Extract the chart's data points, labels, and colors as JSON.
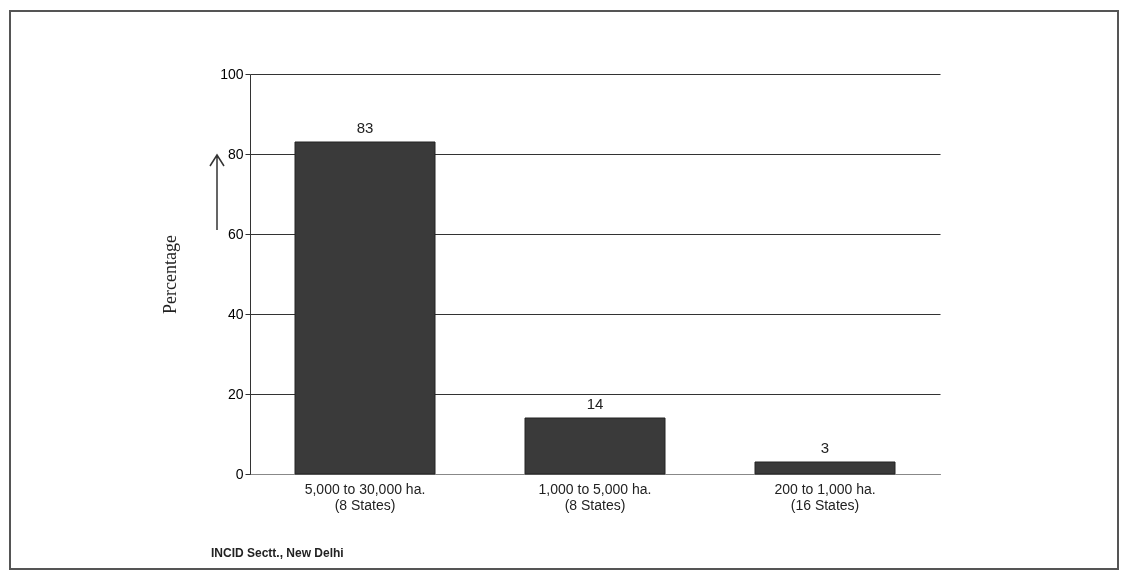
{
  "chart_data": {
    "type": "bar",
    "ylabel": "Percentage",
    "categories": [
      "5,000 to 30,000 ha.\n(8 States)",
      "1,000 to 5,000 ha.\n(8 States)",
      "200 to 1,000 ha.\n(16 States)"
    ],
    "values": [
      83,
      14,
      3
    ],
    "color": "#3a3a3a",
    "ylim": [
      0,
      100
    ],
    "yticks": [
      0,
      20,
      40,
      60,
      80,
      100
    ],
    "grid": "y",
    "data_labels": true,
    "annotations": [
      "INCID Sectt., New Delhi"
    ]
  }
}
